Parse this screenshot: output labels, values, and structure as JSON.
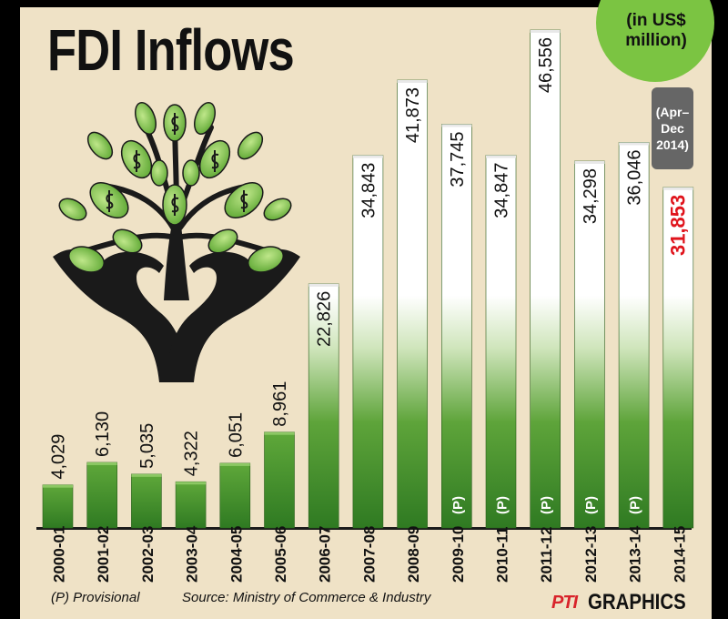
{
  "title": "FDI Inflows",
  "unit_label": "(in US$ million)",
  "partial_note": "(Apr–Dec 2014)",
  "provisional_note": "(P) Provisional",
  "source": "Source: Ministry of Commerce & Industry",
  "brand": {
    "pti": "PTI",
    "graphics": "GRAPHICS"
  },
  "colors": {
    "bar_green": "#4a8f2e",
    "highlight_red": "#e0141c",
    "background": "#efe2c6",
    "badge_green": "#7bc442"
  },
  "icon": "money-tree-hands-icon",
  "chart_data": {
    "type": "bar",
    "title": "FDI Inflows",
    "unit": "(in US$ million)",
    "categories": [
      "2000-01",
      "2001-02",
      "2002-03",
      "2003-04",
      "2004-05",
      "2005-06",
      "2006-07",
      "2007-08",
      "2008-09",
      "2009-10",
      "2010-11",
      "2011-12",
      "2012-13",
      "2013-14",
      "2014-15"
    ],
    "values": [
      4029,
      6130,
      5035,
      4322,
      6051,
      8961,
      22826,
      34843,
      41873,
      37745,
      34847,
      46556,
      34298,
      36046,
      31853
    ],
    "value_labels": [
      "4,029",
      "6,130",
      "5,035",
      "4,322",
      "6,051",
      "8,961",
      "22,826",
      "34,843",
      "41,873",
      "37,745",
      "34,847",
      "46,556",
      "34,298",
      "36,046",
      "31,853"
    ],
    "provisional": [
      false,
      false,
      false,
      false,
      false,
      false,
      false,
      false,
      false,
      true,
      true,
      true,
      true,
      true,
      false
    ],
    "provisional_marker": "(P)",
    "highlight_index": 14,
    "ylim": [
      0,
      48000
    ],
    "grid": false,
    "legend": "none"
  }
}
